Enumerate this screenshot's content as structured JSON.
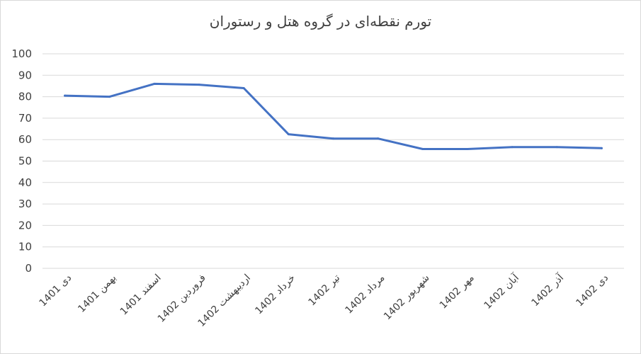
{
  "chart_data": {
    "type": "line",
    "title": "تورم نقطه‌ای در گروه هتل و رستوران",
    "xlabel": "",
    "ylabel": "",
    "ylim": [
      0,
      100
    ],
    "yticks": [
      0,
      10,
      20,
      30,
      40,
      50,
      60,
      70,
      80,
      90,
      100
    ],
    "grid": true,
    "legend": "none",
    "categories": [
      "دی 1401",
      "بهمن 1401",
      "اسفند 1401",
      "فروردین 1402",
      "اردیبهشت 1402",
      "خرداد 1402",
      "تیر 1402",
      "مرداد 1402",
      "شهریور 1402",
      "مهر 1402",
      "آبان 1402",
      "آذر 1402",
      "دی 1402"
    ],
    "series": [
      {
        "color": "#4472c4",
        "values": [
          80.5,
          80.0,
          86.0,
          85.6,
          84.0,
          62.5,
          60.5,
          60.5,
          55.6,
          55.6,
          56.5,
          56.5,
          56.0
        ]
      }
    ]
  }
}
